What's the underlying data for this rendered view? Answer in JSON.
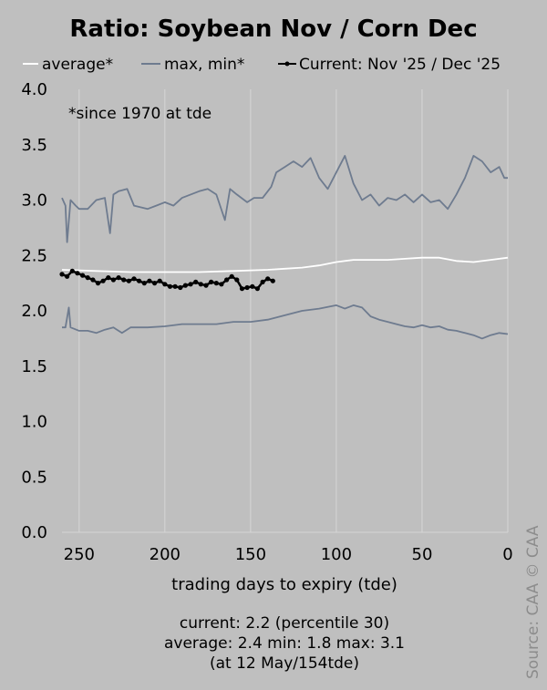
{
  "chart_data": {
    "type": "line",
    "title": "Ratio: Soybean Nov / Corn Dec",
    "xlabel": "trading days to expiry (tde)",
    "ylabel": "",
    "xlim": [
      260,
      0
    ],
    "ylim": [
      0,
      4
    ],
    "x_ticks": [
      250,
      200,
      150,
      100,
      50,
      0
    ],
    "y_ticks": [
      "0.0",
      "0.5",
      "1.0",
      "1.5",
      "2.0",
      "2.5",
      "3.0",
      "3.5",
      "4.0"
    ],
    "grid": {
      "vertical": true,
      "horizontal": false
    },
    "legend_position": "top",
    "annotation": "*since 1970 at tde",
    "stats_lines": [
      "current: 2.2 (percentile 30)",
      "average: 2.4  min: 1.8  max: 3.1",
      "(at 12 May/154tde)"
    ],
    "source": "Source: CAA  © CAA",
    "series": [
      {
        "name": "average*",
        "color": "#ffffff",
        "points": [
          [
            260,
            2.37
          ],
          [
            240,
            2.36
          ],
          [
            220,
            2.35
          ],
          [
            200,
            2.35
          ],
          [
            180,
            2.35
          ],
          [
            160,
            2.36
          ],
          [
            140,
            2.37
          ],
          [
            130,
            2.38
          ],
          [
            120,
            2.39
          ],
          [
            110,
            2.41
          ],
          [
            100,
            2.44
          ],
          [
            90,
            2.46
          ],
          [
            80,
            2.46
          ],
          [
            70,
            2.46
          ],
          [
            60,
            2.47
          ],
          [
            50,
            2.48
          ],
          [
            40,
            2.48
          ],
          [
            30,
            2.45
          ],
          [
            20,
            2.44
          ],
          [
            10,
            2.46
          ],
          [
            0,
            2.48
          ]
        ]
      },
      {
        "name": "max, min*",
        "color": "#6e7b8f",
        "points": [
          [
            260,
            3.02
          ],
          [
            258,
            2.95
          ],
          [
            257,
            2.62
          ],
          [
            255,
            3.0
          ],
          [
            252,
            2.95
          ],
          [
            250,
            2.92
          ],
          [
            245,
            2.92
          ],
          [
            240,
            3.0
          ],
          [
            235,
            3.02
          ],
          [
            232,
            2.7
          ],
          [
            230,
            3.05
          ],
          [
            227,
            3.08
          ],
          [
            222,
            3.1
          ],
          [
            218,
            2.95
          ],
          [
            210,
            2.92
          ],
          [
            205,
            2.95
          ],
          [
            200,
            2.98
          ],
          [
            195,
            2.95
          ],
          [
            190,
            3.02
          ],
          [
            185,
            3.05
          ],
          [
            180,
            3.08
          ],
          [
            175,
            3.1
          ],
          [
            170,
            3.05
          ],
          [
            165,
            2.82
          ],
          [
            162,
            3.1
          ],
          [
            158,
            3.05
          ],
          [
            152,
            2.98
          ],
          [
            148,
            3.02
          ],
          [
            143,
            3.02
          ],
          [
            138,
            3.12
          ],
          [
            135,
            3.25
          ],
          [
            130,
            3.3
          ],
          [
            125,
            3.35
          ],
          [
            120,
            3.3
          ],
          [
            115,
            3.38
          ],
          [
            110,
            3.2
          ],
          [
            105,
            3.1
          ],
          [
            100,
            3.25
          ],
          [
            95,
            3.4
          ],
          [
            90,
            3.15
          ],
          [
            85,
            3.0
          ],
          [
            80,
            3.05
          ],
          [
            75,
            2.95
          ],
          [
            70,
            3.02
          ],
          [
            65,
            3.0
          ],
          [
            60,
            3.05
          ],
          [
            55,
            2.98
          ],
          [
            50,
            3.05
          ],
          [
            45,
            2.98
          ],
          [
            40,
            3.0
          ],
          [
            35,
            2.92
          ],
          [
            30,
            3.05
          ],
          [
            25,
            3.2
          ],
          [
            20,
            3.4
          ],
          [
            15,
            3.35
          ],
          [
            10,
            3.25
          ],
          [
            5,
            3.3
          ],
          [
            2,
            3.2
          ],
          [
            0,
            3.2
          ]
        ]
      },
      {
        "name": "max, min*",
        "color": "#6e7b8f",
        "points": [
          [
            260,
            1.85
          ],
          [
            258,
            1.85
          ],
          [
            256,
            2.03
          ],
          [
            255,
            1.85
          ],
          [
            250,
            1.82
          ],
          [
            245,
            1.82
          ],
          [
            240,
            1.8
          ],
          [
            235,
            1.83
          ],
          [
            230,
            1.85
          ],
          [
            225,
            1.8
          ],
          [
            220,
            1.85
          ],
          [
            210,
            1.85
          ],
          [
            200,
            1.86
          ],
          [
            190,
            1.88
          ],
          [
            180,
            1.88
          ],
          [
            170,
            1.88
          ],
          [
            160,
            1.9
          ],
          [
            150,
            1.9
          ],
          [
            140,
            1.92
          ],
          [
            130,
            1.96
          ],
          [
            120,
            2.0
          ],
          [
            110,
            2.02
          ],
          [
            100,
            2.05
          ],
          [
            95,
            2.02
          ],
          [
            90,
            2.05
          ],
          [
            85,
            2.03
          ],
          [
            80,
            1.95
          ],
          [
            75,
            1.92
          ],
          [
            70,
            1.9
          ],
          [
            65,
            1.88
          ],
          [
            60,
            1.86
          ],
          [
            55,
            1.85
          ],
          [
            50,
            1.87
          ],
          [
            45,
            1.85
          ],
          [
            40,
            1.86
          ],
          [
            35,
            1.83
          ],
          [
            30,
            1.82
          ],
          [
            25,
            1.8
          ],
          [
            20,
            1.78
          ],
          [
            15,
            1.75
          ],
          [
            10,
            1.78
          ],
          [
            5,
            1.8
          ],
          [
            0,
            1.79
          ]
        ]
      },
      {
        "name": "Current: Nov '25 / Dec '25",
        "color": "#000000",
        "points": [
          [
            260,
            2.33
          ],
          [
            257,
            2.31
          ],
          [
            254,
            2.36
          ],
          [
            251,
            2.34
          ],
          [
            248,
            2.32
          ],
          [
            245,
            2.3
          ],
          [
            242,
            2.28
          ],
          [
            239,
            2.25
          ],
          [
            236,
            2.27
          ],
          [
            233,
            2.3
          ],
          [
            230,
            2.28
          ],
          [
            227,
            2.3
          ],
          [
            224,
            2.28
          ],
          [
            221,
            2.27
          ],
          [
            218,
            2.29
          ],
          [
            215,
            2.27
          ],
          [
            212,
            2.25
          ],
          [
            209,
            2.27
          ],
          [
            206,
            2.25
          ],
          [
            203,
            2.27
          ],
          [
            200,
            2.24
          ],
          [
            197,
            2.22
          ],
          [
            194,
            2.22
          ],
          [
            191,
            2.21
          ],
          [
            188,
            2.23
          ],
          [
            185,
            2.24
          ],
          [
            182,
            2.26
          ],
          [
            179,
            2.24
          ],
          [
            176,
            2.23
          ],
          [
            173,
            2.26
          ],
          [
            170,
            2.25
          ],
          [
            167,
            2.24
          ],
          [
            164,
            2.28
          ],
          [
            161,
            2.31
          ],
          [
            158,
            2.28
          ],
          [
            155,
            2.2
          ],
          [
            152,
            2.21
          ],
          [
            149,
            2.22
          ],
          [
            146,
            2.2
          ],
          [
            143,
            2.26
          ],
          [
            140,
            2.29
          ],
          [
            137,
            2.27
          ]
        ]
      }
    ]
  }
}
